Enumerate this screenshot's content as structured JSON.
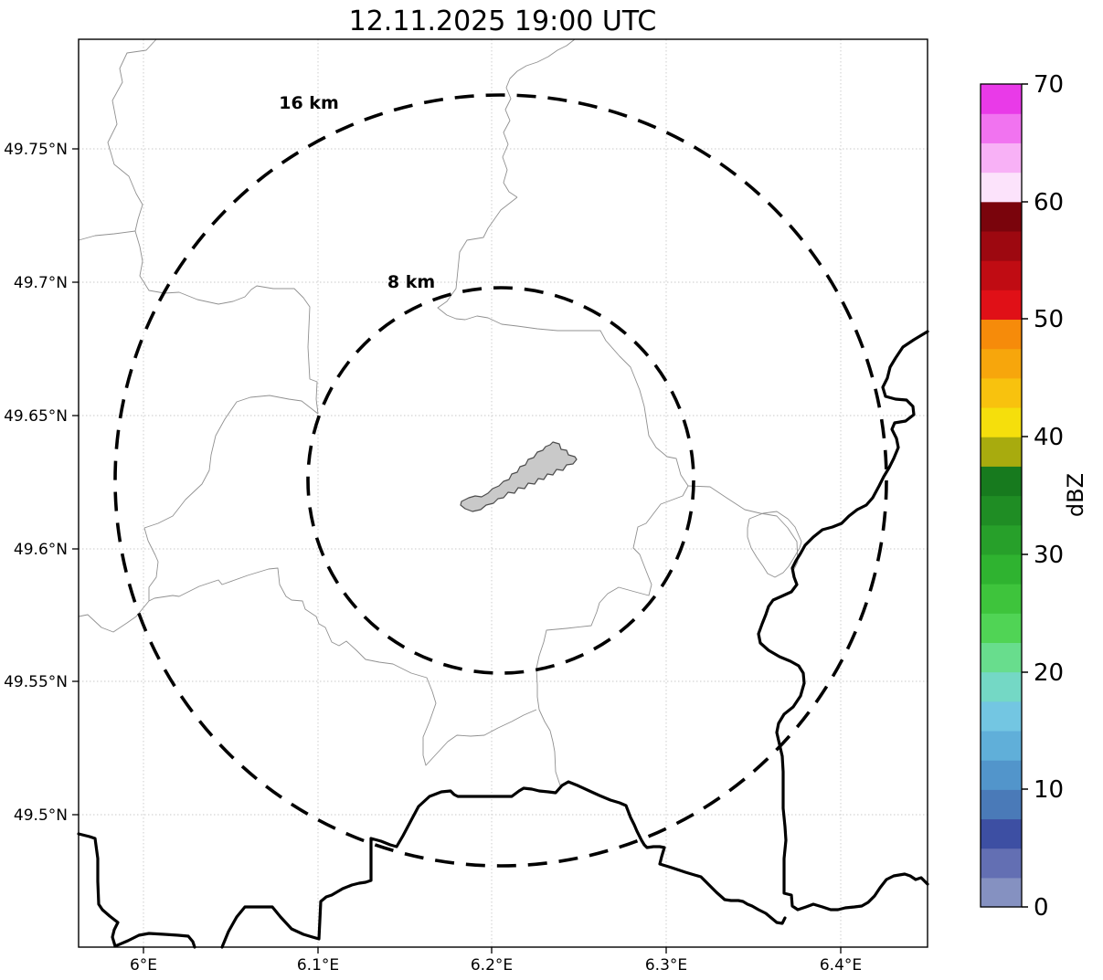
{
  "title": "12.11.2025 19:00 UTC",
  "map": {
    "x_ticks": [
      {
        "label": "6°E"
      },
      {
        "label": "6.1°E"
      },
      {
        "label": "6.2°E"
      },
      {
        "label": "6.3°E"
      },
      {
        "label": "6.4°E"
      }
    ],
    "y_ticks": [
      {
        "label": "49.75°N"
      },
      {
        "label": "49.7°N"
      },
      {
        "label": "49.65°N"
      },
      {
        "label": "49.6°N"
      },
      {
        "label": "49.55°N"
      },
      {
        "label": "49.5°N"
      }
    ],
    "range_rings": [
      {
        "label": "16 km",
        "radius_km": 16
      },
      {
        "label": "8 km",
        "radius_km": 8
      }
    ]
  },
  "colorbar": {
    "label": "dBZ",
    "min": 0,
    "max": 70,
    "tick_labels": [
      "0",
      "10",
      "20",
      "30",
      "40",
      "50",
      "60",
      "70"
    ],
    "segment_colors_bottom_to_top": [
      "#8591c1",
      "#636fb3",
      "#3d4fa3",
      "#4a7ab8",
      "#5295cb",
      "#60afd9",
      "#73c6e2",
      "#74d8c5",
      "#68dd8d",
      "#50d455",
      "#3ec43c",
      "#2fb330",
      "#27a02a",
      "#1f8d24",
      "#177a1e",
      "#a8ab0e",
      "#f5df0c",
      "#f8c20e",
      "#f7a60c",
      "#f68b0a",
      "#e01017",
      "#c00c13",
      "#9d0810",
      "#7a040c",
      "#fce3fb",
      "#f8b1f6",
      "#f173f0",
      "#e93ae8"
    ]
  }
}
